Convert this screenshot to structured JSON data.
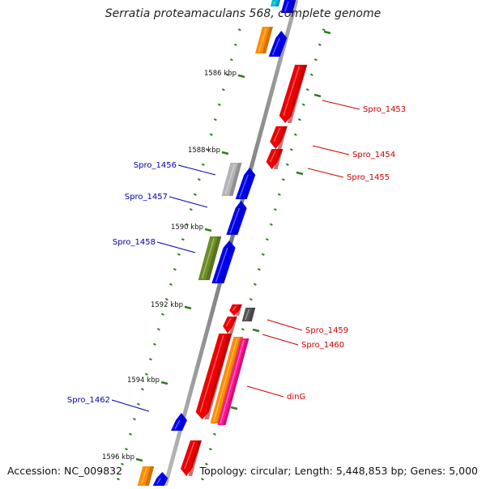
{
  "title": "Serratia proteamaculans 568, complete genome",
  "footer": {
    "accession": "Accession: NC_009832",
    "topology": "Topology: circular; Length: 5,448,853 bp; Genes: 5,000"
  },
  "scale_labels": [
    "1586 kbp",
    "1588 kbp",
    "1590 kbp",
    "1592 kbp",
    "1594 kbp",
    "1596 kbp"
  ],
  "gene_labels": {
    "right": [
      "Spro_1453",
      "Spro_1454",
      "Spro_1455",
      "Spro_1459",
      "Spro_1460",
      "dinG"
    ],
    "left": [
      "Spro_1456",
      "Spro_1457",
      "Spro_1458",
      "Spro_1462"
    ]
  },
  "colors": {
    "backbone": "#888888",
    "tick": "#2e7d1e",
    "plus_strand_gene": "#0000ee",
    "minus_strand_gene": "#ee0000",
    "label_right": "#cc0000",
    "label_left": "#0000aa",
    "orange_feature": "#ff8c00",
    "gray_feature": "#b4b4b4",
    "olive_feature": "#6b8e23",
    "magenta_feature": "#ff1493",
    "darkgray_feature": "#555555",
    "cyan_feature": "#00bcd4"
  }
}
